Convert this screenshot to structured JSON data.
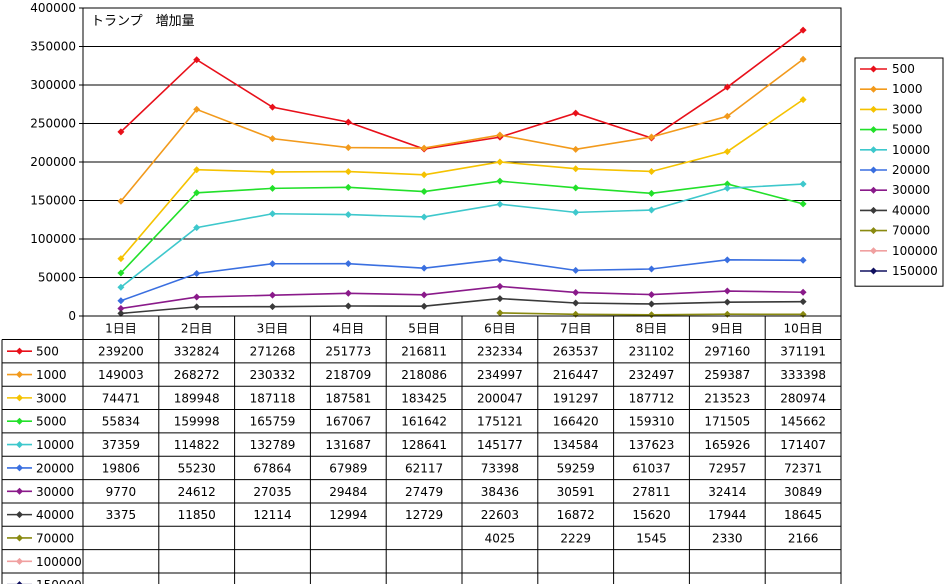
{
  "chart_data": {
    "type": "line",
    "title": "トランプ　増加量",
    "categories": [
      "1日目",
      "2日目",
      "3日目",
      "4日目",
      "5日目",
      "6日目",
      "7日目",
      "8日目",
      "9日目",
      "10日目"
    ],
    "ylim": [
      0,
      400000
    ],
    "y_ticks": [
      "0",
      "50000",
      "100000",
      "150000",
      "200000",
      "250000",
      "300000",
      "350000",
      "400000"
    ],
    "grid": true,
    "legend_position": "right",
    "series": [
      {
        "name": "500",
        "color": "#e8101a",
        "values": [
          "239200",
          "332824",
          "271268",
          "251773",
          "216811",
          "232334",
          "263537",
          "231102",
          "297160",
          "371191"
        ]
      },
      {
        "name": "1000",
        "color": "#f29a1c",
        "values": [
          "149003",
          "268272",
          "230332",
          "218709",
          "218086",
          "234997",
          "216447",
          "232497",
          "259387",
          "333398"
        ]
      },
      {
        "name": "3000",
        "color": "#f5c200",
        "values": [
          "74471",
          "189948",
          "187118",
          "187581",
          "183425",
          "200047",
          "191297",
          "187712",
          "213523",
          "280974"
        ]
      },
      {
        "name": "5000",
        "color": "#22e02a",
        "values": [
          "55834",
          "159998",
          "165759",
          "167067",
          "161642",
          "175121",
          "166420",
          "159310",
          "171505",
          "145662"
        ]
      },
      {
        "name": "10000",
        "color": "#3ec8cc",
        "values": [
          "37359",
          "114822",
          "132789",
          "131687",
          "128641",
          "145177",
          "134584",
          "137623",
          "165926",
          "171407"
        ]
      },
      {
        "name": "20000",
        "color": "#3a6fe0",
        "values": [
          "19806",
          "55230",
          "67864",
          "67989",
          "62117",
          "73398",
          "59259",
          "61037",
          "72957",
          "72371"
        ]
      },
      {
        "name": "30000",
        "color": "#8a1a8a",
        "values": [
          "9770",
          "24612",
          "27035",
          "29484",
          "27479",
          "38436",
          "30591",
          "27811",
          "32414",
          "30849"
        ]
      },
      {
        "name": "40000",
        "color": "#3a3a3a",
        "values": [
          "3375",
          "11850",
          "12114",
          "12994",
          "12729",
          "22603",
          "16872",
          "15620",
          "17944",
          "18645"
        ]
      },
      {
        "name": "70000",
        "color": "#8a8a10",
        "values": [
          "",
          "",
          "",
          "",
          "",
          "4025",
          "2229",
          "1545",
          "2330",
          "2166"
        ]
      },
      {
        "name": "100000",
        "color": "#f0a0a0",
        "values": [
          "",
          "",
          "",
          "",
          "",
          "",
          "",
          "",
          "",
          ""
        ]
      },
      {
        "name": "150000",
        "color": "#101060",
        "values": [
          "",
          "",
          "",
          "",
          "",
          "",
          "",
          "",
          "",
          ""
        ]
      }
    ]
  }
}
